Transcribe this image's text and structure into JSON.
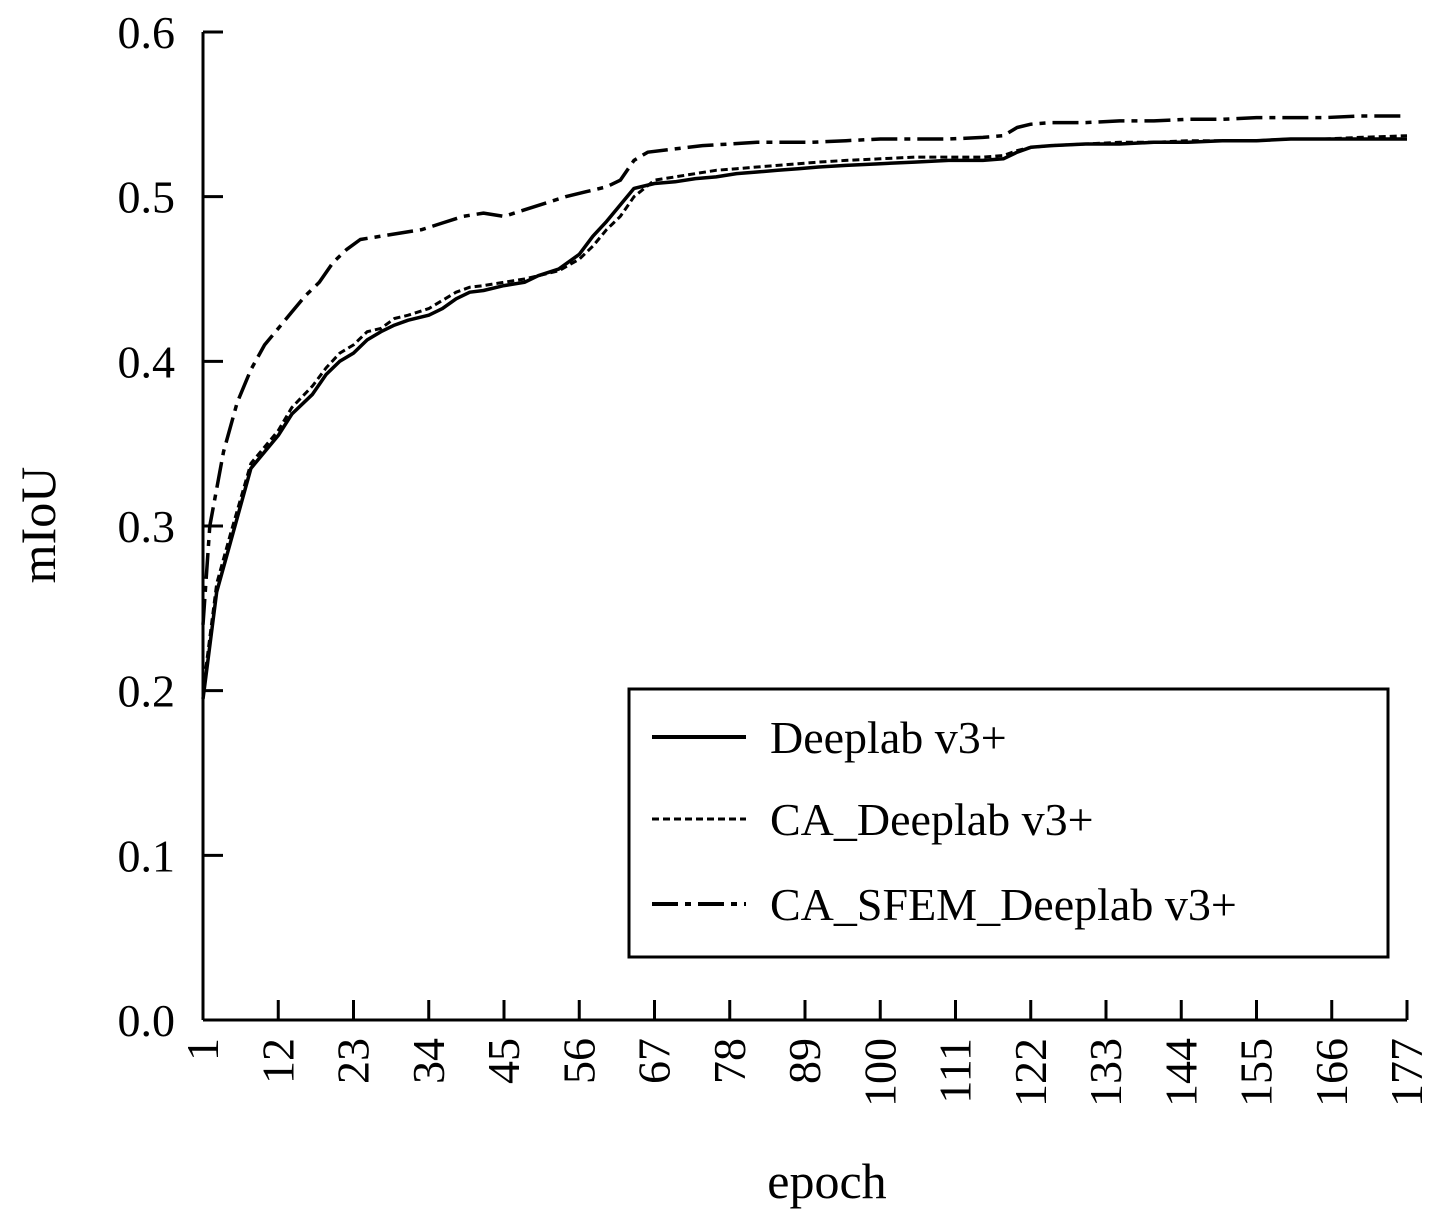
{
  "chart_data": {
    "type": "line",
    "xlabel": "epoch",
    "ylabel": "mIoU",
    "ylim": [
      0.0,
      0.6
    ],
    "xlim": [
      1,
      177
    ],
    "y_ticks": [
      0.0,
      0.1,
      0.2,
      0.3,
      0.4,
      0.5,
      0.6
    ],
    "y_tick_labels": [
      "0.0",
      "0.1",
      "0.2",
      "0.3",
      "0.4",
      "0.5",
      "0.6"
    ],
    "x_ticks": [
      1,
      12,
      23,
      34,
      45,
      56,
      67,
      78,
      89,
      100,
      111,
      122,
      133,
      144,
      155,
      166,
      177
    ],
    "x_tick_labels": [
      "1",
      "12",
      "23",
      "34",
      "45",
      "56",
      "67",
      "78",
      "89",
      "100",
      "111",
      "122",
      "133",
      "144",
      "155",
      "166",
      "177"
    ],
    "grid": false,
    "legend_position": "bottom-right",
    "series": [
      {
        "name": "Deeplab v3+",
        "style": "solid",
        "color": "#000000",
        "x": [
          1,
          3,
          5,
          8,
          10,
          12,
          14,
          17,
          19,
          21,
          23,
          25,
          27,
          29,
          31,
          34,
          36,
          38,
          40,
          42,
          45,
          48,
          50,
          53,
          56,
          58,
          60,
          62,
          64,
          67,
          70,
          73,
          76,
          79,
          82,
          85,
          88,
          91,
          95,
          100,
          105,
          110,
          115,
          118,
          120,
          122,
          125,
          130,
          135,
          140,
          145,
          150,
          155,
          160,
          165,
          170,
          177
        ],
        "y": [
          0.195,
          0.26,
          0.29,
          0.335,
          0.345,
          0.355,
          0.368,
          0.38,
          0.392,
          0.4,
          0.405,
          0.413,
          0.418,
          0.422,
          0.425,
          0.428,
          0.432,
          0.438,
          0.442,
          0.443,
          0.446,
          0.448,
          0.452,
          0.456,
          0.465,
          0.476,
          0.485,
          0.495,
          0.505,
          0.508,
          0.509,
          0.511,
          0.512,
          0.514,
          0.515,
          0.516,
          0.517,
          0.518,
          0.519,
          0.52,
          0.521,
          0.522,
          0.522,
          0.523,
          0.527,
          0.53,
          0.531,
          0.532,
          0.532,
          0.533,
          0.533,
          0.534,
          0.534,
          0.535,
          0.535,
          0.535,
          0.535
        ]
      },
      {
        "name": "CA_Deeplab v3+",
        "style": "dashed",
        "color": "#000000",
        "x": [
          1,
          3,
          5,
          8,
          10,
          12,
          14,
          17,
          19,
          21,
          23,
          25,
          27,
          29,
          31,
          34,
          36,
          38,
          40,
          42,
          45,
          48,
          50,
          53,
          56,
          58,
          60,
          62,
          64,
          67,
          70,
          73,
          76,
          79,
          82,
          85,
          88,
          91,
          95,
          100,
          105,
          110,
          115,
          118,
          120,
          122,
          125,
          130,
          135,
          140,
          145,
          150,
          155,
          160,
          165,
          170,
          177
        ],
        "y": [
          0.2,
          0.265,
          0.295,
          0.338,
          0.348,
          0.358,
          0.372,
          0.385,
          0.396,
          0.405,
          0.41,
          0.418,
          0.42,
          0.426,
          0.428,
          0.432,
          0.437,
          0.442,
          0.445,
          0.446,
          0.448,
          0.45,
          0.452,
          0.455,
          0.462,
          0.47,
          0.48,
          0.488,
          0.5,
          0.51,
          0.512,
          0.514,
          0.516,
          0.517,
          0.518,
          0.519,
          0.52,
          0.521,
          0.522,
          0.523,
          0.524,
          0.524,
          0.524,
          0.525,
          0.528,
          0.53,
          0.531,
          0.532,
          0.533,
          0.533,
          0.534,
          0.534,
          0.534,
          0.535,
          0.535,
          0.536,
          0.537
        ]
      },
      {
        "name": "CA_SFEM_Deeplab v3+",
        "style": "dashdot",
        "color": "#000000",
        "x": [
          1,
          2,
          4,
          6,
          8,
          10,
          12,
          14,
          16,
          18,
          20,
          22,
          24,
          27,
          30,
          33,
          36,
          39,
          42,
          45,
          48,
          51,
          54,
          57,
          60,
          62,
          64,
          66,
          70,
          74,
          78,
          82,
          86,
          90,
          95,
          100,
          105,
          110,
          115,
          118,
          120,
          122,
          125,
          130,
          135,
          140,
          145,
          150,
          155,
          160,
          165,
          170,
          177
        ],
        "y": [
          0.24,
          0.3,
          0.345,
          0.375,
          0.395,
          0.41,
          0.42,
          0.43,
          0.44,
          0.448,
          0.46,
          0.468,
          0.474,
          0.476,
          0.478,
          0.48,
          0.484,
          0.488,
          0.49,
          0.488,
          0.492,
          0.496,
          0.5,
          0.503,
          0.506,
          0.51,
          0.522,
          0.527,
          0.529,
          0.531,
          0.532,
          0.533,
          0.533,
          0.533,
          0.534,
          0.535,
          0.535,
          0.535,
          0.536,
          0.537,
          0.542,
          0.544,
          0.545,
          0.545,
          0.546,
          0.546,
          0.547,
          0.547,
          0.548,
          0.548,
          0.548,
          0.549,
          0.549
        ]
      }
    ]
  }
}
